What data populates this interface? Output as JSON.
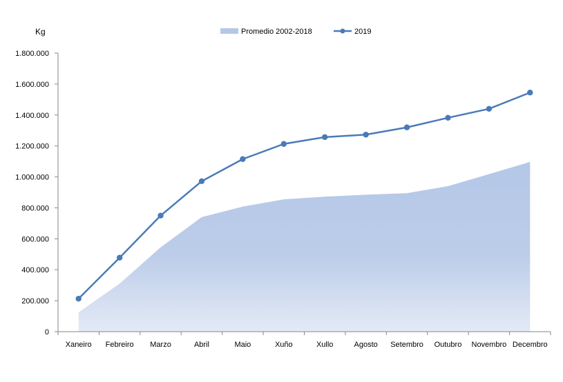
{
  "chart_data": {
    "type": "area",
    "unit_label": "Kg",
    "categories": [
      "Xaneiro",
      "Febreiro",
      "Marzo",
      "Abril",
      "Maio",
      "Xuño",
      "Xullo",
      "Agosto",
      "Setembro",
      "Outubro",
      "Novembro",
      "Decembro"
    ],
    "ylim": [
      0,
      1800000
    ],
    "yticks": [
      0,
      200000,
      400000,
      600000,
      800000,
      1000000,
      1200000,
      1400000,
      1600000,
      1800000
    ],
    "ytick_labels": [
      "0",
      "200.000",
      "400.000",
      "600.000",
      "800.000",
      "1.000.000",
      "1.200.000",
      "1.400.000",
      "1.600.000",
      "1.800.000"
    ],
    "grid": false,
    "legend_position": "top",
    "series": [
      {
        "name": "Promedio 2002-2018",
        "kind": "area",
        "color": "#b4c7e7",
        "values": [
          125000,
          310000,
          545000,
          740000,
          808000,
          855000,
          872000,
          885000,
          895000,
          940000,
          1018000,
          1097000
        ]
      },
      {
        "name": "2019",
        "kind": "line",
        "color": "#4a7ab8",
        "values": [
          213000,
          478000,
          750000,
          972000,
          1115000,
          1213000,
          1257000,
          1273000,
          1320000,
          1382000,
          1440000,
          1545000
        ]
      }
    ]
  }
}
